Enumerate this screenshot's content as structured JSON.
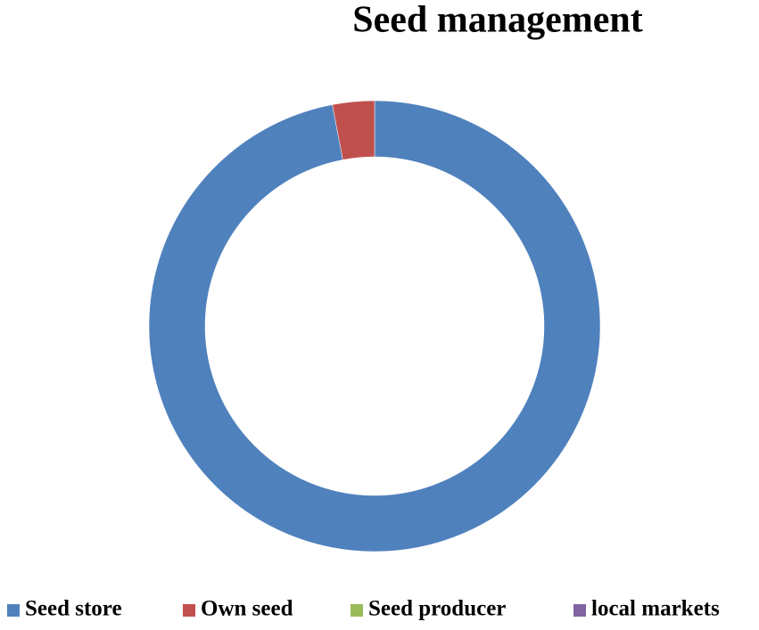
{
  "chart_data": {
    "type": "donut",
    "title": "Seed management",
    "categories": [
      "Seed store",
      "Own seed",
      "Seed producer",
      "local markets"
    ],
    "values": [
      97,
      3,
      0,
      0
    ],
    "colors": [
      "#4f81bd",
      "#c0504d",
      "#9bbb59",
      "#8064a2"
    ],
    "legend": "bottom"
  }
}
